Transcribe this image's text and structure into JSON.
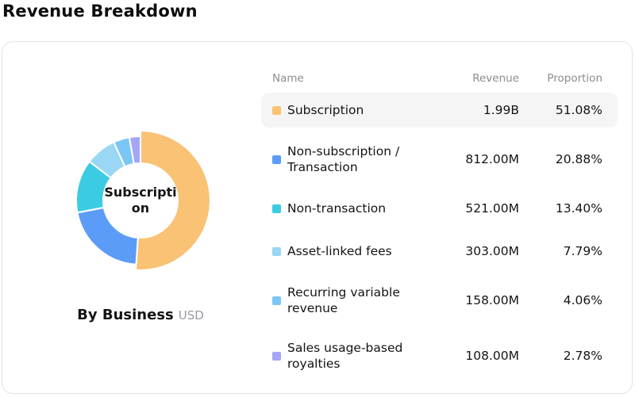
{
  "page_title": "Revenue Breakdown",
  "card": {
    "donut": {
      "center_label_lines": [
        "Subscripti",
        "on"
      ],
      "footer_title": "By Business",
      "footer_unit": "USD"
    }
  },
  "table": {
    "headers": {
      "name": "Name",
      "revenue": "Revenue",
      "proportion": "Proportion"
    },
    "highlighted_row_index": 0,
    "rows": [
      {
        "name": "Subscription",
        "revenue": "1.99B",
        "proportion": "51.08%",
        "color": "#F9C274"
      },
      {
        "name": "Non-subscription / Transaction",
        "revenue": "812.00M",
        "proportion": "20.88%",
        "color": "#5B9CF8"
      },
      {
        "name": "Non-transaction",
        "revenue": "521.00M",
        "proportion": "13.40%",
        "color": "#3BCCE4"
      },
      {
        "name": "Asset-linked fees",
        "revenue": "303.00M",
        "proportion": "7.79%",
        "color": "#9AD7F5"
      },
      {
        "name": "Recurring variable revenue",
        "revenue": "158.00M",
        "proportion": "4.06%",
        "color": "#7CC6F5"
      },
      {
        "name": "Sales usage-based royalties",
        "revenue": "108.00M",
        "proportion": "2.78%",
        "color": "#A5A6F5"
      }
    ]
  },
  "chart_data": {
    "type": "pie",
    "subtype": "donut",
    "title": "By Business",
    "unit": "USD",
    "center_label": "Subscription",
    "emphasized_index": 0,
    "start_angle": "top",
    "direction": "clockwise",
    "categories": [
      "Subscription",
      "Non-subscription / Transaction",
      "Non-transaction",
      "Asset-linked fees",
      "Recurring variable revenue",
      "Sales usage-based royalties"
    ],
    "values_percent": [
      51.08,
      20.88,
      13.4,
      7.79,
      4.06,
      2.78
    ],
    "values_revenue": [
      "1.99B",
      "812.00M",
      "521.00M",
      "303.00M",
      "158.00M",
      "108.00M"
    ],
    "colors": [
      "#F9C274",
      "#5B9CF8",
      "#3BCCE4",
      "#9AD7F5",
      "#7CC6F5",
      "#A5A6F5"
    ],
    "legend_position": "table-right"
  }
}
